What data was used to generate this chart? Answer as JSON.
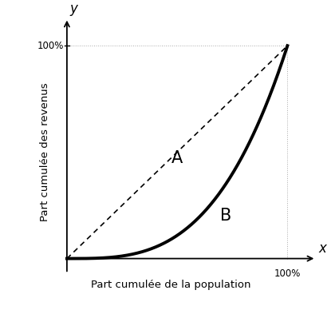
{
  "xlabel": "Part cumulée de la population",
  "ylabel": "Part cumulée des revenus",
  "x_label_axis": "x",
  "y_label_axis": "y",
  "x_tick_label": "100%",
  "y_tick_label": "100%",
  "label_A": "A",
  "label_B": "B",
  "bg_color": "#ffffff",
  "curve_color": "#000000",
  "diag_color": "#000000",
  "dotted_color": "#aaaaaa",
  "curve_linewidth": 2.8,
  "diag_linewidth": 1.2,
  "dotted_linewidth": 0.7,
  "lorenz_power": 3.2,
  "figsize": [
    4.2,
    3.98
  ],
  "dpi": 100
}
